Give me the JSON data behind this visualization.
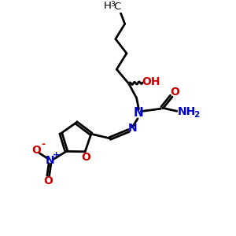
{
  "bg_color": "#ffffff",
  "bond_color": "#000000",
  "bond_width": 2.0,
  "atom_colors": {
    "C": "#000000",
    "N": "#0000cc",
    "O": "#cc0000",
    "H": "#000000"
  }
}
